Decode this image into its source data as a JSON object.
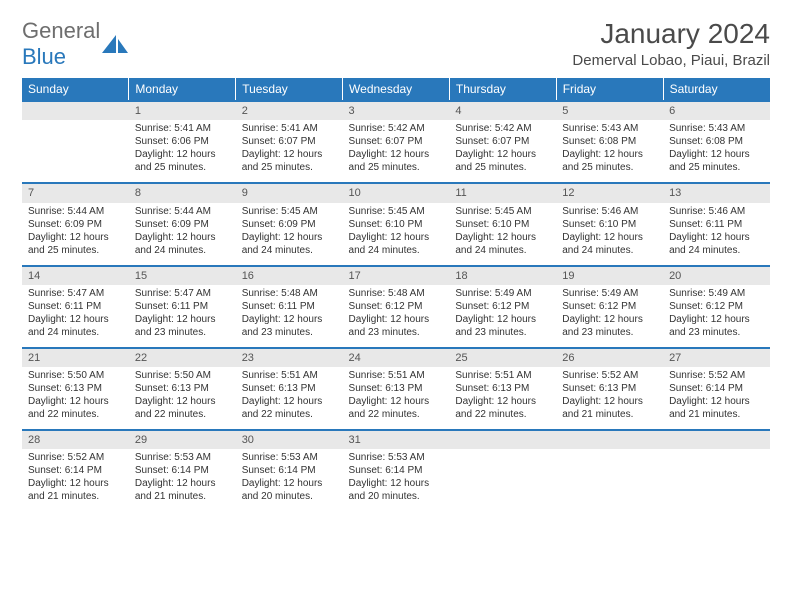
{
  "logo": {
    "text1": "General",
    "text2": "Blue"
  },
  "title": "January 2024",
  "location": "Demerval Lobao, Piaui, Brazil",
  "colors": {
    "header_bg": "#2978bb",
    "daynum_bg": "#e8e8e8",
    "rule": "#2978bb",
    "text": "#333333",
    "title": "#4a4a4a"
  },
  "daynames": [
    "Sunday",
    "Monday",
    "Tuesday",
    "Wednesday",
    "Thursday",
    "Friday",
    "Saturday"
  ],
  "weeks": [
    [
      {
        "n": "",
        "sr": "",
        "ss": "",
        "d1": "",
        "d2": ""
      },
      {
        "n": "1",
        "sr": "Sunrise: 5:41 AM",
        "ss": "Sunset: 6:06 PM",
        "d1": "Daylight: 12 hours",
        "d2": "and 25 minutes."
      },
      {
        "n": "2",
        "sr": "Sunrise: 5:41 AM",
        "ss": "Sunset: 6:07 PM",
        "d1": "Daylight: 12 hours",
        "d2": "and 25 minutes."
      },
      {
        "n": "3",
        "sr": "Sunrise: 5:42 AM",
        "ss": "Sunset: 6:07 PM",
        "d1": "Daylight: 12 hours",
        "d2": "and 25 minutes."
      },
      {
        "n": "4",
        "sr": "Sunrise: 5:42 AM",
        "ss": "Sunset: 6:07 PM",
        "d1": "Daylight: 12 hours",
        "d2": "and 25 minutes."
      },
      {
        "n": "5",
        "sr": "Sunrise: 5:43 AM",
        "ss": "Sunset: 6:08 PM",
        "d1": "Daylight: 12 hours",
        "d2": "and 25 minutes."
      },
      {
        "n": "6",
        "sr": "Sunrise: 5:43 AM",
        "ss": "Sunset: 6:08 PM",
        "d1": "Daylight: 12 hours",
        "d2": "and 25 minutes."
      }
    ],
    [
      {
        "n": "7",
        "sr": "Sunrise: 5:44 AM",
        "ss": "Sunset: 6:09 PM",
        "d1": "Daylight: 12 hours",
        "d2": "and 25 minutes."
      },
      {
        "n": "8",
        "sr": "Sunrise: 5:44 AM",
        "ss": "Sunset: 6:09 PM",
        "d1": "Daylight: 12 hours",
        "d2": "and 24 minutes."
      },
      {
        "n": "9",
        "sr": "Sunrise: 5:45 AM",
        "ss": "Sunset: 6:09 PM",
        "d1": "Daylight: 12 hours",
        "d2": "and 24 minutes."
      },
      {
        "n": "10",
        "sr": "Sunrise: 5:45 AM",
        "ss": "Sunset: 6:10 PM",
        "d1": "Daylight: 12 hours",
        "d2": "and 24 minutes."
      },
      {
        "n": "11",
        "sr": "Sunrise: 5:45 AM",
        "ss": "Sunset: 6:10 PM",
        "d1": "Daylight: 12 hours",
        "d2": "and 24 minutes."
      },
      {
        "n": "12",
        "sr": "Sunrise: 5:46 AM",
        "ss": "Sunset: 6:10 PM",
        "d1": "Daylight: 12 hours",
        "d2": "and 24 minutes."
      },
      {
        "n": "13",
        "sr": "Sunrise: 5:46 AM",
        "ss": "Sunset: 6:11 PM",
        "d1": "Daylight: 12 hours",
        "d2": "and 24 minutes."
      }
    ],
    [
      {
        "n": "14",
        "sr": "Sunrise: 5:47 AM",
        "ss": "Sunset: 6:11 PM",
        "d1": "Daylight: 12 hours",
        "d2": "and 24 minutes."
      },
      {
        "n": "15",
        "sr": "Sunrise: 5:47 AM",
        "ss": "Sunset: 6:11 PM",
        "d1": "Daylight: 12 hours",
        "d2": "and 23 minutes."
      },
      {
        "n": "16",
        "sr": "Sunrise: 5:48 AM",
        "ss": "Sunset: 6:11 PM",
        "d1": "Daylight: 12 hours",
        "d2": "and 23 minutes."
      },
      {
        "n": "17",
        "sr": "Sunrise: 5:48 AM",
        "ss": "Sunset: 6:12 PM",
        "d1": "Daylight: 12 hours",
        "d2": "and 23 minutes."
      },
      {
        "n": "18",
        "sr": "Sunrise: 5:49 AM",
        "ss": "Sunset: 6:12 PM",
        "d1": "Daylight: 12 hours",
        "d2": "and 23 minutes."
      },
      {
        "n": "19",
        "sr": "Sunrise: 5:49 AM",
        "ss": "Sunset: 6:12 PM",
        "d1": "Daylight: 12 hours",
        "d2": "and 23 minutes."
      },
      {
        "n": "20",
        "sr": "Sunrise: 5:49 AM",
        "ss": "Sunset: 6:12 PM",
        "d1": "Daylight: 12 hours",
        "d2": "and 23 minutes."
      }
    ],
    [
      {
        "n": "21",
        "sr": "Sunrise: 5:50 AM",
        "ss": "Sunset: 6:13 PM",
        "d1": "Daylight: 12 hours",
        "d2": "and 22 minutes."
      },
      {
        "n": "22",
        "sr": "Sunrise: 5:50 AM",
        "ss": "Sunset: 6:13 PM",
        "d1": "Daylight: 12 hours",
        "d2": "and 22 minutes."
      },
      {
        "n": "23",
        "sr": "Sunrise: 5:51 AM",
        "ss": "Sunset: 6:13 PM",
        "d1": "Daylight: 12 hours",
        "d2": "and 22 minutes."
      },
      {
        "n": "24",
        "sr": "Sunrise: 5:51 AM",
        "ss": "Sunset: 6:13 PM",
        "d1": "Daylight: 12 hours",
        "d2": "and 22 minutes."
      },
      {
        "n": "25",
        "sr": "Sunrise: 5:51 AM",
        "ss": "Sunset: 6:13 PM",
        "d1": "Daylight: 12 hours",
        "d2": "and 22 minutes."
      },
      {
        "n": "26",
        "sr": "Sunrise: 5:52 AM",
        "ss": "Sunset: 6:13 PM",
        "d1": "Daylight: 12 hours",
        "d2": "and 21 minutes."
      },
      {
        "n": "27",
        "sr": "Sunrise: 5:52 AM",
        "ss": "Sunset: 6:14 PM",
        "d1": "Daylight: 12 hours",
        "d2": "and 21 minutes."
      }
    ],
    [
      {
        "n": "28",
        "sr": "Sunrise: 5:52 AM",
        "ss": "Sunset: 6:14 PM",
        "d1": "Daylight: 12 hours",
        "d2": "and 21 minutes."
      },
      {
        "n": "29",
        "sr": "Sunrise: 5:53 AM",
        "ss": "Sunset: 6:14 PM",
        "d1": "Daylight: 12 hours",
        "d2": "and 21 minutes."
      },
      {
        "n": "30",
        "sr": "Sunrise: 5:53 AM",
        "ss": "Sunset: 6:14 PM",
        "d1": "Daylight: 12 hours",
        "d2": "and 20 minutes."
      },
      {
        "n": "31",
        "sr": "Sunrise: 5:53 AM",
        "ss": "Sunset: 6:14 PM",
        "d1": "Daylight: 12 hours",
        "d2": "and 20 minutes."
      },
      {
        "n": "",
        "sr": "",
        "ss": "",
        "d1": "",
        "d2": ""
      },
      {
        "n": "",
        "sr": "",
        "ss": "",
        "d1": "",
        "d2": ""
      },
      {
        "n": "",
        "sr": "",
        "ss": "",
        "d1": "",
        "d2": ""
      }
    ]
  ]
}
